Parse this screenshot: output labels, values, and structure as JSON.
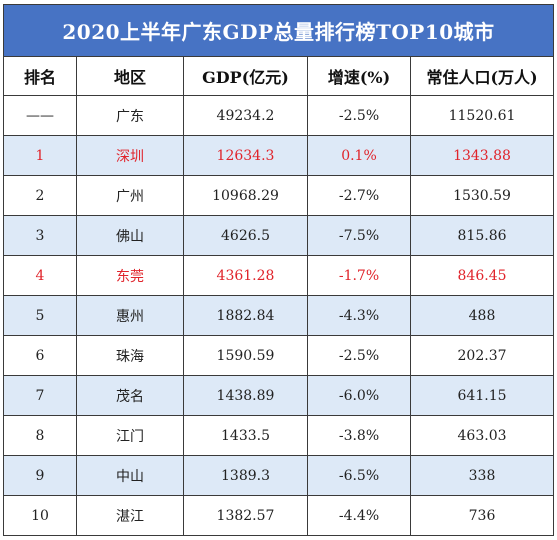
{
  "title": "2020上半年广东GDP总量排行榜TOP10城市",
  "headers": [
    "排名",
    "地区",
    "GDP(亿元)",
    "增速(%)",
    "常住人口(万人)"
  ],
  "rows": [
    {
      "rank": "——",
      "region": "广东",
      "gdp": "49234.2",
      "growth": "-2.5%",
      "population": "11520.61",
      "shade": "white",
      "highlight": false
    },
    {
      "rank": "1",
      "region": "深圳",
      "gdp": "12634.3",
      "growth": "0.1%",
      "population": "1343.88",
      "shade": "blue",
      "highlight": true
    },
    {
      "rank": "2",
      "region": "广州",
      "gdp": "10968.29",
      "growth": "-2.7%",
      "population": "1530.59",
      "shade": "white",
      "highlight": false
    },
    {
      "rank": "3",
      "region": "佛山",
      "gdp": "4626.5",
      "growth": "-7.5%",
      "population": "815.86",
      "shade": "blue",
      "highlight": false
    },
    {
      "rank": "4",
      "region": "东莞",
      "gdp": "4361.28",
      "growth": "-1.7%",
      "population": "846.45",
      "shade": "white",
      "highlight": true
    },
    {
      "rank": "5",
      "region": "惠州",
      "gdp": "1882.84",
      "growth": "-4.3%",
      "population": "488",
      "shade": "blue",
      "highlight": false
    },
    {
      "rank": "6",
      "region": "珠海",
      "gdp": "1590.59",
      "growth": "-2.5%",
      "population": "202.37",
      "shade": "white",
      "highlight": false
    },
    {
      "rank": "7",
      "region": "茂名",
      "gdp": "1438.89",
      "growth": "-6.0%",
      "population": "641.15",
      "shade": "blue",
      "highlight": false
    },
    {
      "rank": "8",
      "region": "江门",
      "gdp": "1433.5",
      "growth": "-3.8%",
      "population": "463.03",
      "shade": "white",
      "highlight": false
    },
    {
      "rank": "9",
      "region": "中山",
      "gdp": "1389.3",
      "growth": "-6.5%",
      "population": "338",
      "shade": "blue",
      "highlight": false
    },
    {
      "rank": "10",
      "region": "湛江",
      "gdp": "1382.57",
      "growth": "-4.4%",
      "population": "736",
      "shade": "white",
      "highlight": false
    }
  ],
  "colors": {
    "title_bg": "#4773c4",
    "alt_row_bg": "#dde9f7",
    "highlight_text": "#e0242b",
    "border": "#3a3a3a"
  }
}
